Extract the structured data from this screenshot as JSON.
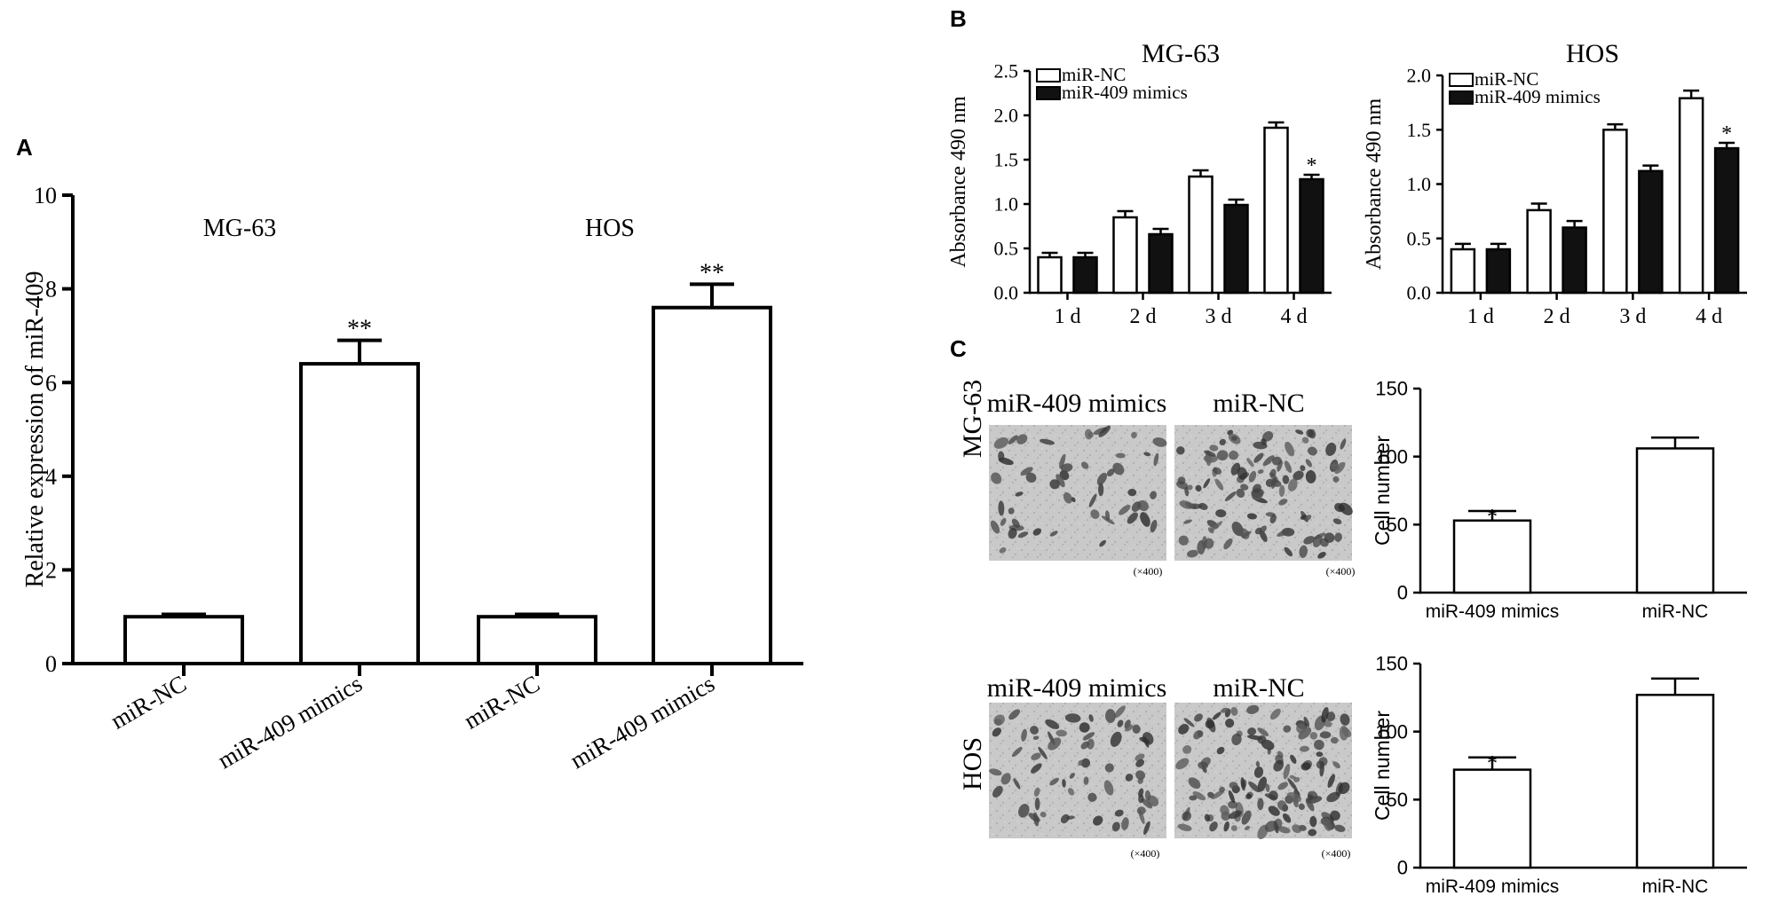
{
  "panels": [
    {
      "label": "A"
    },
    {
      "label": "B"
    },
    {
      "label": "C"
    }
  ],
  "micrographs": {
    "mg63": {
      "row_label": "MG-63",
      "left_title": "miR-409 mimics",
      "right_title": "miR-NC",
      "magnification": "(×400)"
    },
    "hos": {
      "row_label": "HOS",
      "left_title": "miR-409 mimics",
      "right_title": "miR-NC",
      "magnification": "(×400)"
    }
  },
  "chart_data": [
    {
      "id": "A",
      "type": "bar",
      "ylabel": "Relative expression of miR-409",
      "ylim": [
        0,
        10
      ],
      "yticks": [
        0,
        2,
        4,
        6,
        8,
        10
      ],
      "group_labels": [
        "MG-63",
        "HOS"
      ],
      "categories": [
        "miR-NC",
        "miR-409 mimics",
        "miR-NC",
        "miR-409 mimics"
      ],
      "values": [
        1.0,
        6.4,
        1.0,
        7.6
      ],
      "errors": [
        0.05,
        0.5,
        0.05,
        0.5
      ],
      "annotations": [
        "",
        "**",
        "",
        "**"
      ]
    },
    {
      "id": "B-MG63",
      "type": "bar",
      "title": "MG-63",
      "ylabel": "Absorbance 490 nm",
      "ylim": [
        0,
        2.5
      ],
      "yticks": [
        "0.0",
        "0.5",
        "1.0",
        "1.5",
        "2.0",
        "2.5"
      ],
      "categories": [
        "1 d",
        "2 d",
        "3 d",
        "4 d"
      ],
      "legend": "top-left",
      "series": [
        {
          "name": "miR-NC",
          "color": "#ffffff",
          "values": [
            0.4,
            0.85,
            1.31,
            1.86
          ],
          "errors": [
            0.05,
            0.07,
            0.07,
            0.06
          ]
        },
        {
          "name": "miR-409 mimics",
          "color": "#111111",
          "values": [
            0.4,
            0.66,
            0.99,
            1.28
          ],
          "errors": [
            0.05,
            0.06,
            0.06,
            0.05
          ],
          "annotations": [
            "",
            "",
            "",
            "*"
          ]
        }
      ]
    },
    {
      "id": "B-HOS",
      "type": "bar",
      "title": "HOS",
      "ylabel": "Absorbance 490 nm",
      "ylim": [
        0,
        2.0
      ],
      "yticks": [
        "0.0",
        "0.5",
        "1.0",
        "1.5",
        "2.0"
      ],
      "categories": [
        "1 d",
        "2 d",
        "3 d",
        "4 d"
      ],
      "legend": "top-left",
      "series": [
        {
          "name": "miR-NC",
          "color": "#ffffff",
          "values": [
            0.4,
            0.76,
            1.5,
            1.79
          ],
          "errors": [
            0.05,
            0.06,
            0.05,
            0.07
          ]
        },
        {
          "name": "miR-409 mimics",
          "color": "#111111",
          "values": [
            0.4,
            0.6,
            1.12,
            1.33
          ],
          "errors": [
            0.05,
            0.06,
            0.05,
            0.05
          ],
          "annotations": [
            "",
            "",
            "",
            "*"
          ]
        }
      ]
    },
    {
      "id": "C-MG63",
      "type": "bar",
      "ylabel": "Cell number",
      "ylim": [
        0,
        150
      ],
      "yticks": [
        0,
        50,
        100,
        150
      ],
      "categories": [
        "miR-409 mimics",
        "miR-NC"
      ],
      "values": [
        53,
        106
      ],
      "errors": [
        7,
        8
      ],
      "annotations": [
        "*",
        ""
      ]
    },
    {
      "id": "C-HOS",
      "type": "bar",
      "ylabel": "Cell number",
      "ylim": [
        0,
        150
      ],
      "yticks": [
        0,
        50,
        100,
        150
      ],
      "categories": [
        "miR-409 mimics",
        "miR-NC"
      ],
      "values": [
        72,
        127
      ],
      "errors": [
        9,
        12
      ],
      "annotations": [
        "*",
        ""
      ]
    }
  ]
}
